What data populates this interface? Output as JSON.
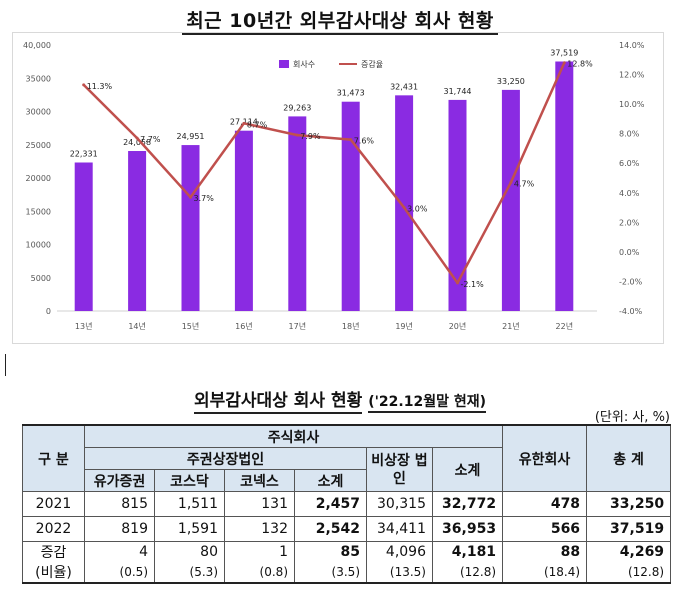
{
  "chart_title": "최근 10년간 외부감사대상 회사 현황",
  "chart_data": {
    "type": "bar",
    "categories": [
      "13년",
      "14년",
      "15년",
      "16년",
      "17년",
      "18년",
      "19년",
      "20년",
      "21년",
      "22년"
    ],
    "series": [
      {
        "name": "회사수",
        "type": "bar",
        "color": "#8a2be2",
        "values": [
          22331,
          24058,
          24951,
          27114,
          29263,
          31473,
          32431,
          31744,
          33250,
          37519
        ],
        "labels": [
          "22,331",
          "24,058",
          "24,951",
          "27,114",
          "29,263",
          "31,473",
          "32,431",
          "31,744",
          "33,250",
          "37,519"
        ]
      },
      {
        "name": "증감율",
        "type": "line",
        "color": "#c0504d",
        "axis": "right",
        "values": [
          11.3,
          7.7,
          3.7,
          8.7,
          7.9,
          7.6,
          3.0,
          -2.1,
          4.7,
          12.8
        ],
        "labels": [
          "11.3%",
          "7.7%",
          "3.7%",
          "8.7%",
          "7.9%",
          "7.6%",
          "3.0%",
          "-2.1%",
          "4.7%",
          "12.8%"
        ]
      }
    ],
    "ylim": [
      0,
      40000
    ],
    "yticks": [
      "0",
      "5000",
      "10000",
      "15000",
      "20000",
      "25000",
      "30000",
      "35000",
      "40,000"
    ],
    "y2lim": [
      -4.0,
      14.0
    ],
    "y2ticks": [
      "-4.0%",
      "-2.0%",
      "0.0%",
      "2.0%",
      "4.0%",
      "6.0%",
      "8.0%",
      "10.0%",
      "12.0%",
      "14.0%"
    ],
    "legend": "top-center",
    "grid": false
  },
  "table": {
    "title": "외부감사대상 회사 현황",
    "subtitle": "('22.12월말 현재)",
    "unit": "(단위: 사, %)",
    "header": {
      "gubun": "구  분",
      "stock_company": "주식회사",
      "listed": "주권상장법인",
      "kospi": "유가증권",
      "kosdaq": "코스닥",
      "konex": "코넥스",
      "subtotal": "소계",
      "unlisted": "비상장 법인",
      "stock_total": "소계",
      "llc": "유한회사",
      "total": "총  계"
    },
    "rows": [
      {
        "year": "2021",
        "kospi": "815",
        "kosdaq": "1,511",
        "konex": "131",
        "listed_sub": "2,457",
        "unlisted": "30,315",
        "stock_sub": "32,772",
        "llc": "478",
        "total": "33,250"
      },
      {
        "year": "2022",
        "kospi": "819",
        "kosdaq": "1,591",
        "konex": "132",
        "listed_sub": "2,542",
        "unlisted": "34,411",
        "stock_sub": "36,953",
        "llc": "566",
        "total": "37,519"
      }
    ],
    "change": {
      "label": "증감",
      "kospi": "4",
      "kosdaq": "80",
      "konex": "1",
      "listed_sub": "85",
      "unlisted": "4,096",
      "stock_sub": "4,181",
      "llc": "88",
      "total": "4,269"
    },
    "ratio": {
      "label": "(비율)",
      "kospi": "(0.5)",
      "kosdaq": "(5.3)",
      "konex": "(0.8)",
      "listed_sub": "(3.5)",
      "unlisted": "(13.5)",
      "stock_sub": "(12.8)",
      "llc": "(18.4)",
      "total": "(12.8)"
    }
  }
}
